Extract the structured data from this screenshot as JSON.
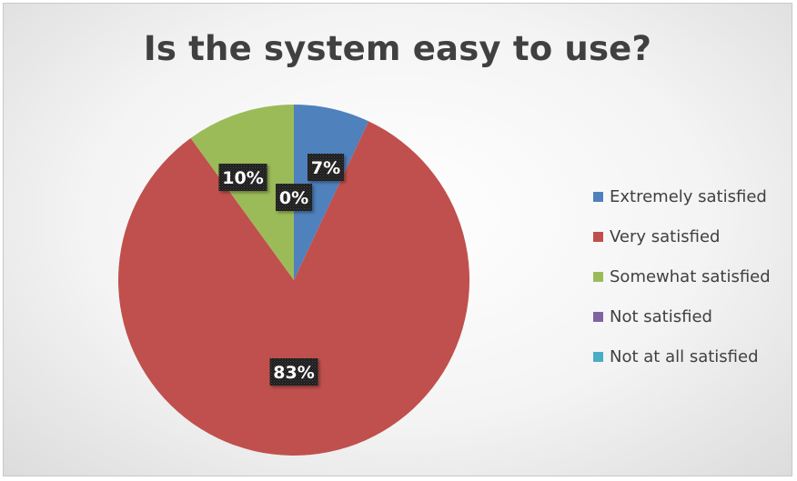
{
  "chart_data": {
    "type": "pie",
    "title": "Is the system easy to use?",
    "categories": [
      "Extremely satisfied",
      "Very satisfied",
      "Somewhat satisfied",
      "Not satisfied",
      "Not at all satisfied"
    ],
    "values": [
      7,
      83,
      10,
      0,
      0
    ],
    "data_labels": [
      "7%",
      "83%",
      "10%",
      "0%",
      ""
    ],
    "colors": [
      "#4f81bd",
      "#c0504d",
      "#9bbb59",
      "#8064a2",
      "#4bacc6"
    ],
    "legend_position": "right"
  }
}
